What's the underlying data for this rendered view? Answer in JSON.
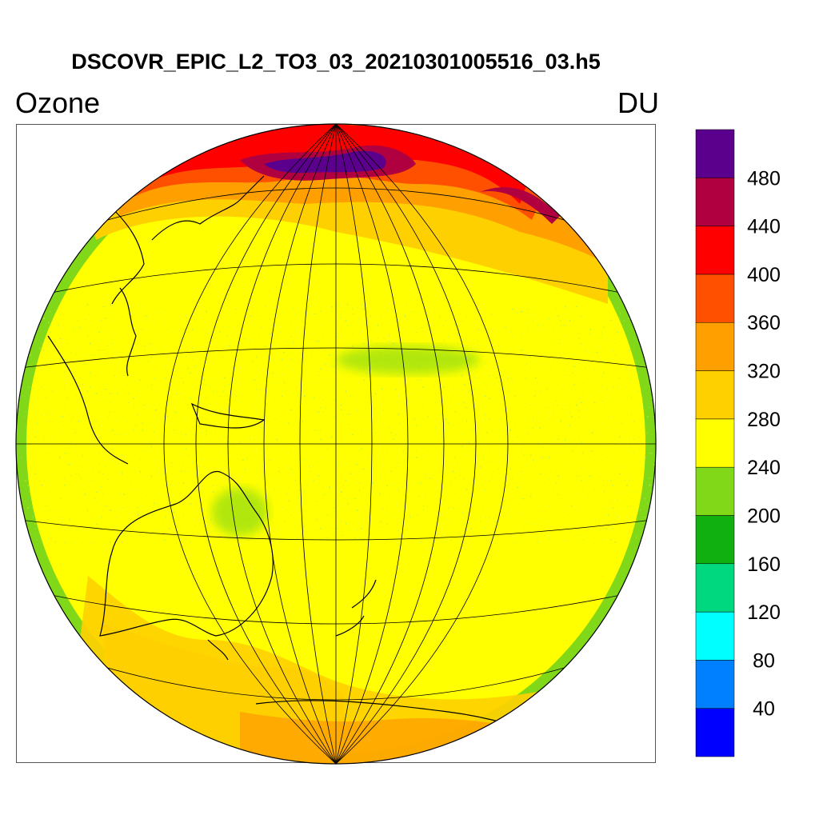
{
  "header": {
    "file_title": "DSCOVR_EPIC_L2_TO3_03_20210301005516_03.h5",
    "variable_label": "Ozone",
    "unit_label": "DU"
  },
  "colorbar": {
    "levels": [
      40,
      80,
      120,
      160,
      200,
      240,
      280,
      320,
      360,
      400,
      440,
      480
    ],
    "colors": [
      "#0000ff",
      "#0080ff",
      "#00ffff",
      "#00d880",
      "#10b010",
      "#80d818",
      "#ffff00",
      "#ffd000",
      "#ffa000",
      "#ff5000",
      "#ff0000",
      "#b00040",
      "#5a008c"
    ]
  },
  "map": {
    "projection": "orthographic",
    "center": {
      "lat": 0,
      "lon": 160
    },
    "graticule": {
      "lat_step": 15,
      "lon_step": 15
    }
  }
}
